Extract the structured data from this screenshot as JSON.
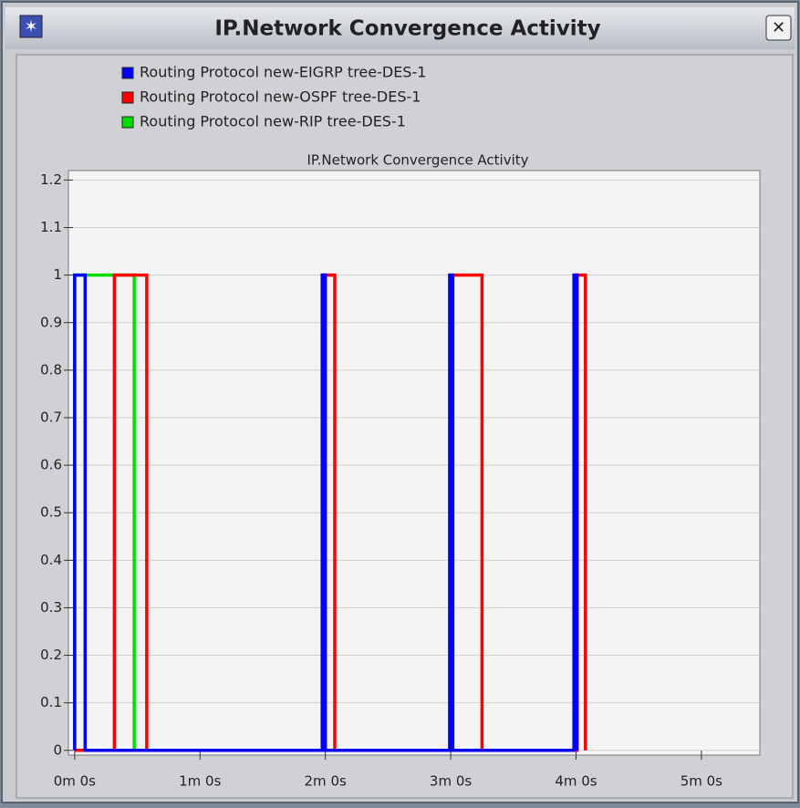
{
  "window": {
    "title": "IP.Network Convergence Activity"
  },
  "chart_data": {
    "type": "line",
    "title": "IP.Network Convergence Activity",
    "series": [
      {
        "name": "Routing Protocol new-EIGRP tree-DES-1",
        "color": "#0000ff",
        "x": [
          0,
          0,
          5,
          5,
          118.5,
          118.5,
          120,
          120,
          179.5,
          179.5,
          181,
          181,
          239,
          239,
          240.5,
          240.5
        ],
        "values": [
          0,
          1,
          1,
          0,
          0,
          1,
          1,
          0,
          0,
          1,
          1,
          0,
          0,
          1,
          1,
          0
        ]
      },
      {
        "name": "Routing Protocol new-OSPF tree-DES-1",
        "color": "#ff0000",
        "x": [
          0,
          19,
          19,
          34.5,
          34.5,
          119.5,
          119.5,
          124.5,
          124.5,
          180.5,
          180.5,
          195,
          195,
          240.5,
          240.5,
          244.5,
          244.5
        ],
        "values": [
          0,
          0,
          1,
          1,
          0,
          0,
          1,
          1,
          0,
          0,
          1,
          1,
          0,
          0,
          1,
          1,
          0
        ]
      },
      {
        "name": "Routing Protocol new-RIP tree-DES-1",
        "color": "#00dd00",
        "x": [
          0,
          0,
          28.5,
          28.5,
          35
        ],
        "values": [
          0,
          1,
          1,
          0,
          0
        ]
      }
    ],
    "xlim": [
      -3,
      328
    ],
    "ylim": [
      -0.01,
      1.22
    ],
    "xticks": [
      {
        "value": 0,
        "label": "0m 0s"
      },
      {
        "value": 60,
        "label": "1m 0s"
      },
      {
        "value": 120,
        "label": "2m 0s"
      },
      {
        "value": 180,
        "label": "3m 0s"
      },
      {
        "value": 240,
        "label": "4m 0s"
      },
      {
        "value": 300,
        "label": "5m 0s"
      }
    ],
    "yticks": [
      0,
      0.1,
      0.2,
      0.3,
      0.4,
      0.5,
      0.6,
      0.7,
      0.8,
      0.9,
      1,
      1.1,
      1.2
    ],
    "grid": true
  }
}
